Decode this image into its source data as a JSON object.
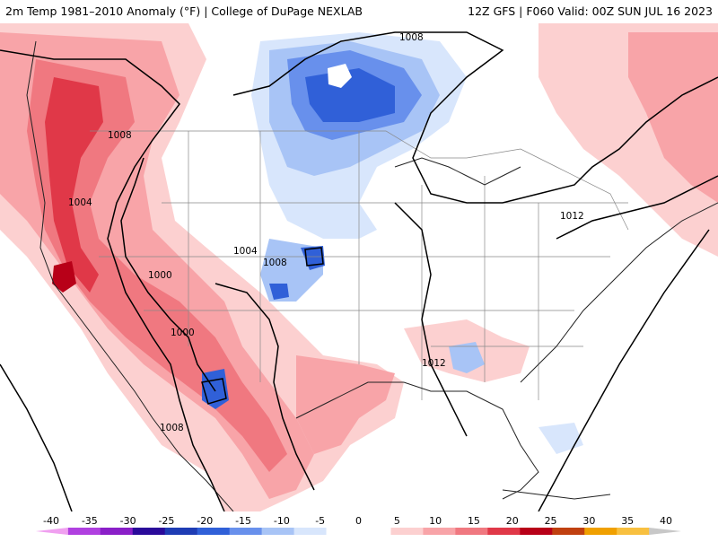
{
  "header": {
    "left_title": "2m Temp 1981–2010 Anomaly (°F) | College of DuPage NEXLAB",
    "right_title": "12Z GFS | F060 Valid: 00Z SUN JUL 16 2023"
  },
  "map": {
    "contour_labels": [
      {
        "id": "c1008-w",
        "text": "1008"
      },
      {
        "id": "c1008-n",
        "text": "1008"
      },
      {
        "id": "c1004-w",
        "text": "1004"
      },
      {
        "id": "c1004-c",
        "text": "1004"
      },
      {
        "id": "c1008-c",
        "text": "1008"
      },
      {
        "id": "c1000-a",
        "text": "1000"
      },
      {
        "id": "c1000-b",
        "text": "1000"
      },
      {
        "id": "c1012-e",
        "text": "1012"
      },
      {
        "id": "c1012-s",
        "text": "1012"
      },
      {
        "id": "c1008-mx",
        "text": "1008"
      }
    ]
  },
  "colorbar": {
    "ticks": [
      "-40",
      "-35",
      "-30",
      "-25",
      "-20",
      "-15",
      "-10",
      "-5",
      "0",
      "5",
      "10",
      "15",
      "20",
      "25",
      "30",
      "35",
      "40"
    ],
    "colors": [
      "#f0a0f0",
      "#b040e0",
      "#8a1fc8",
      "#2a0a9a",
      "#1e3cb4",
      "#3060d8",
      "#6890ec",
      "#a8c4f6",
      "#d8e6fc",
      "#ffffff",
      "#ffffff",
      "#fcd0d0",
      "#f8a4a8",
      "#f07880",
      "#e03848",
      "#b80018",
      "#c04010",
      "#f0a000",
      "#f8c040",
      "#c8c8c8"
    ]
  }
}
